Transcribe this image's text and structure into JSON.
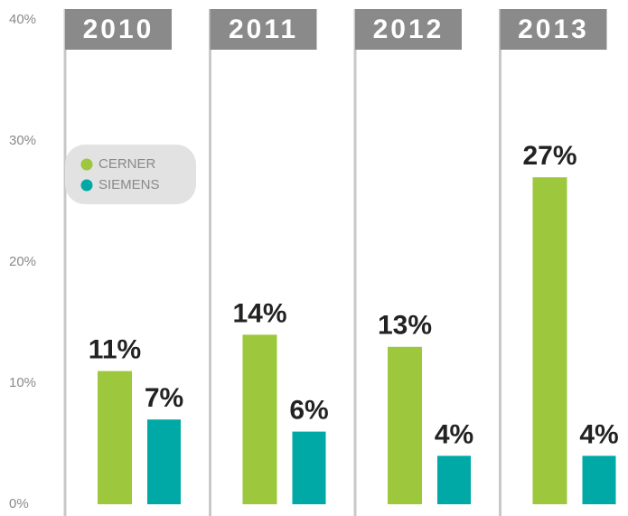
{
  "chart_data": {
    "type": "bar",
    "categories": [
      "2010",
      "2011",
      "2012",
      "2013"
    ],
    "series": [
      {
        "name": "CERNER",
        "color": "#9dc73c",
        "values": [
          11,
          14,
          13,
          27
        ],
        "value_labels": [
          "11%",
          "14%",
          "13%",
          "27%"
        ]
      },
      {
        "name": "SIEMENS",
        "color": "#00a9a5",
        "values": [
          7,
          6,
          4,
          4
        ],
        "value_labels": [
          "7%",
          "6%",
          "4%",
          "4%"
        ]
      }
    ],
    "ylim": [
      0,
      40
    ],
    "yticks": [
      {
        "value": 0,
        "label": "0%"
      },
      {
        "value": 10,
        "label": "10%"
      },
      {
        "value": 20,
        "label": "20%"
      },
      {
        "value": 30,
        "label": "30%"
      },
      {
        "value": 40,
        "label": "40%"
      }
    ],
    "legend": "upper left"
  }
}
